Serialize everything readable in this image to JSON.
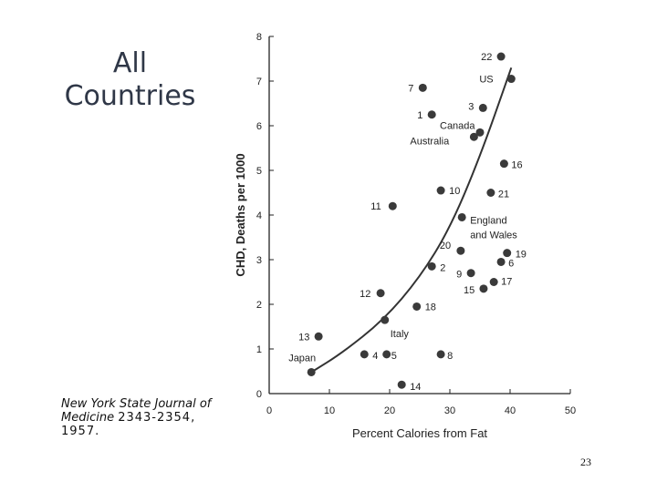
{
  "slide": {
    "title_line1": "All",
    "title_line2": "Countries",
    "citation_journal": "New York State Journal of Medicine",
    "citation_pages": "2343-2354,",
    "citation_year": "1957.",
    "page_number": "23"
  },
  "chart_data": {
    "type": "scatter",
    "title": "",
    "xlabel": "Percent Calories from Fat",
    "ylabel": "CHD, Deaths per 1000",
    "xlim": [
      0,
      50
    ],
    "ylim": [
      0,
      8
    ],
    "x_ticks": [
      0,
      10,
      20,
      30,
      40,
      50
    ],
    "y_ticks": [
      0,
      1,
      2,
      3,
      4,
      5,
      6,
      7,
      8
    ],
    "grid": false,
    "legend": "none",
    "points": [
      {
        "label": "22",
        "x": 38.5,
        "y": 7.55
      },
      {
        "label": "US",
        "x": 40.2,
        "y": 7.05
      },
      {
        "label": "7",
        "x": 25.5,
        "y": 6.85
      },
      {
        "label": "1",
        "x": 27.0,
        "y": 6.25
      },
      {
        "label": "3",
        "x": 35.5,
        "y": 6.4
      },
      {
        "label": "Canada",
        "x": 35.0,
        "y": 5.85
      },
      {
        "label": "Australia",
        "x": 34.0,
        "y": 5.75
      },
      {
        "label": "16",
        "x": 39.0,
        "y": 5.15
      },
      {
        "label": "10",
        "x": 28.5,
        "y": 4.55
      },
      {
        "label": "21",
        "x": 36.8,
        "y": 4.5
      },
      {
        "label": "11",
        "x": 20.5,
        "y": 4.2
      },
      {
        "label": "England and Wales",
        "x": 32.0,
        "y": 3.95
      },
      {
        "label": "20",
        "x": 31.8,
        "y": 3.2
      },
      {
        "label": "19",
        "x": 39.5,
        "y": 3.15
      },
      {
        "label": "6",
        "x": 38.5,
        "y": 2.95
      },
      {
        "label": "2",
        "x": 27.0,
        "y": 2.85
      },
      {
        "label": "9",
        "x": 33.5,
        "y": 2.7
      },
      {
        "label": "17",
        "x": 37.3,
        "y": 2.5
      },
      {
        "label": "15",
        "x": 35.6,
        "y": 2.35
      },
      {
        "label": "12",
        "x": 18.5,
        "y": 2.25
      },
      {
        "label": "18",
        "x": 24.5,
        "y": 1.95
      },
      {
        "label": "Italy",
        "x": 19.2,
        "y": 1.65
      },
      {
        "label": "13",
        "x": 8.2,
        "y": 1.28
      },
      {
        "label": "4",
        "x": 15.8,
        "y": 0.88
      },
      {
        "label": "5",
        "x": 19.5,
        "y": 0.88
      },
      {
        "label": "8",
        "x": 28.5,
        "y": 0.88
      },
      {
        "label": "Japan",
        "x": 7.0,
        "y": 0.48
      },
      {
        "label": "14",
        "x": 22.0,
        "y": 0.2
      }
    ],
    "trend_line": {
      "x": [
        7,
        12,
        19,
        25,
        30,
        35,
        40.2
      ],
      "y": [
        0.48,
        0.9,
        1.65,
        2.6,
        3.7,
        5.3,
        7.3
      ]
    }
  }
}
